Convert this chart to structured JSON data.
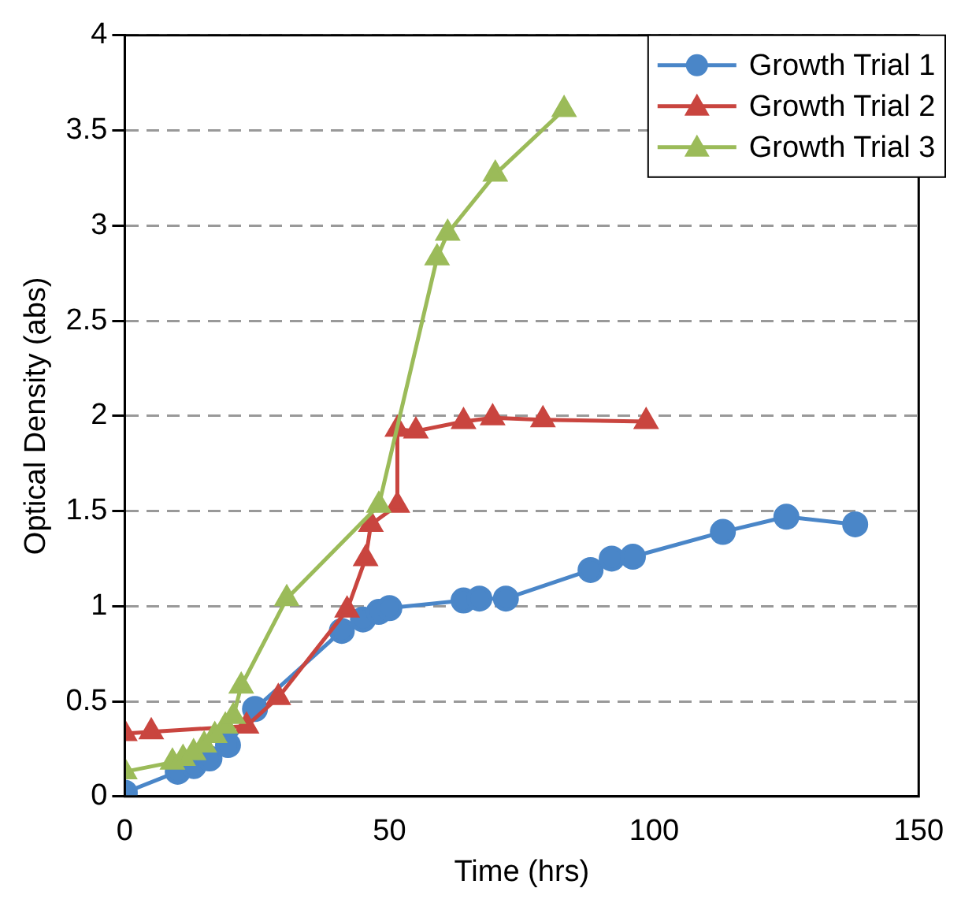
{
  "chart_data": {
    "type": "line",
    "xlabel": "Time (hrs)",
    "ylabel": "Optical Density (abs)",
    "xlim": [
      0,
      150
    ],
    "xticks": [
      0,
      50,
      100,
      150
    ],
    "ylim": [
      0,
      4
    ],
    "yticks": [
      0,
      0.5,
      1,
      1.5,
      2,
      2.5,
      3,
      3.5,
      4
    ],
    "grid": "y",
    "legend": "top right",
    "line_style": "solid",
    "series": [
      {
        "name": "Growth Trial 1",
        "color": "#4a86c8",
        "marker": "circle",
        "x": [
          0,
          10,
          13,
          16,
          19.5,
          24.6,
          41,
          45,
          48,
          50,
          64,
          67,
          72,
          88,
          92,
          96,
          113,
          125,
          138
        ],
        "values": [
          0.02,
          0.13,
          0.16,
          0.2,
          0.27,
          0.46,
          0.87,
          0.93,
          0.97,
          0.99,
          1.03,
          1.04,
          1.04,
          1.19,
          1.25,
          1.26,
          1.39,
          1.47,
          1.43
        ]
      },
      {
        "name": "Growth Trial 2",
        "color": "#c9453f",
        "marker": "triangle",
        "x": [
          0,
          5,
          23,
          29,
          42,
          45.5,
          46.5,
          51.5,
          51.5,
          55,
          64,
          69.5,
          79,
          98.5
        ],
        "values": [
          0.33,
          0.34,
          0.37,
          0.52,
          0.98,
          1.25,
          1.43,
          1.53,
          1.93,
          1.92,
          1.97,
          1.99,
          1.98,
          1.97
        ]
      },
      {
        "name": "Growth Trial 3",
        "color": "#9bbb59",
        "marker": "triangle",
        "x": [
          0,
          9,
          11,
          13,
          15,
          17,
          19,
          20.5,
          22,
          30.6,
          48,
          59,
          61,
          70,
          83
        ],
        "values": [
          0.13,
          0.18,
          0.2,
          0.23,
          0.27,
          0.32,
          0.37,
          0.42,
          0.58,
          1.04,
          1.53,
          2.83,
          2.96,
          3.27,
          3.61
        ]
      }
    ]
  }
}
